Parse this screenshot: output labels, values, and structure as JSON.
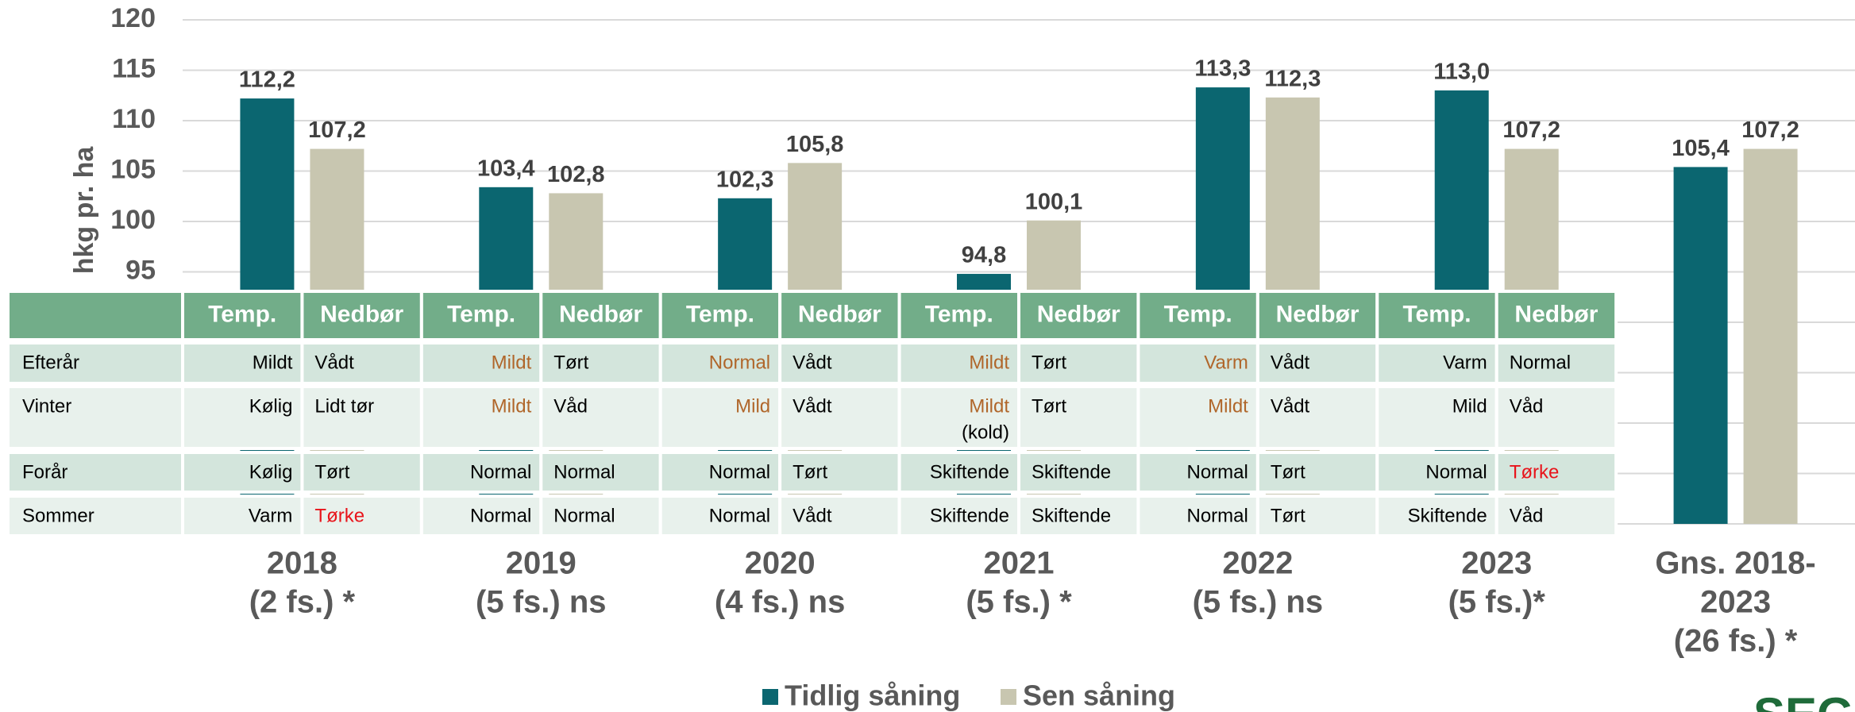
{
  "chart_data": {
    "type": "bar",
    "y_axis_label": "hkg pr. ha",
    "categories": [
      [
        "2018",
        "(2 fs.) *"
      ],
      [
        "2019",
        "(5 fs.) ns"
      ],
      [
        "2020",
        "(4 fs.) ns"
      ],
      [
        "2021",
        "(5 fs.) *"
      ],
      [
        "2022",
        "(5 fs.) ns"
      ],
      [
        "2023",
        "(5 fs.)*"
      ],
      [
        "Gns. 2018-",
        "2023",
        "(26 fs.) *"
      ]
    ],
    "series": [
      {
        "name": "Tidlig såning",
        "color": "#0b6670",
        "values": [
          112.2,
          103.4,
          102.3,
          94.8,
          113.3,
          113.0,
          105.4
        ],
        "value_labels": [
          "112,2",
          "103,4",
          "102,3",
          "94,8",
          "113,3",
          "113,0",
          "105,4"
        ]
      },
      {
        "name": "Sen såning",
        "color": "#c8c6b0",
        "values": [
          107.2,
          102.8,
          105.8,
          100.1,
          112.3,
          107.2,
          107.2
        ],
        "value_labels": [
          "107,2",
          "102,8",
          "105,8",
          "100,1",
          "112,3",
          "107,2",
          "107,2"
        ]
      }
    ],
    "ylim": [
      70,
      120
    ],
    "yticks": [
      70,
      75,
      80,
      85,
      90,
      95,
      100,
      105,
      110,
      115,
      120
    ],
    "grid": true,
    "legend": "bottom"
  },
  "table": {
    "header": [
      "Temp.",
      "Nedbør",
      "Temp.",
      "Nedbør",
      "Temp.",
      "Nedbør",
      "Temp.",
      "Nedbør",
      "Temp.",
      "Nedbør",
      "Temp.",
      "Nedbør"
    ],
    "header_color": "#72ad89",
    "row_colors": [
      "#d3e5dc",
      "#e8f1ec"
    ],
    "text_color": "#000000",
    "rows": [
      {
        "label": "Efterår",
        "cells": [
          {
            "text": "Mildt"
          },
          {
            "text": "Vådt"
          },
          {
            "text": "Mildt",
            "color": "#b0662a"
          },
          {
            "text": "Tørt"
          },
          {
            "text": "Normal",
            "color": "#b0662a"
          },
          {
            "text": "Vådt"
          },
          {
            "text": "Mildt",
            "color": "#b0662a"
          },
          {
            "text": "Tørt"
          },
          {
            "text": "Varm",
            "color": "#b0662a"
          },
          {
            "text": "Vådt"
          },
          {
            "text": "Varm"
          },
          {
            "text": "Normal"
          }
        ]
      },
      {
        "label": "Vinter",
        "cells": [
          {
            "text": "Kølig"
          },
          {
            "text": "Lidt tør"
          },
          {
            "text": "Mildt",
            "color": "#b0662a"
          },
          {
            "text": "Våd"
          },
          {
            "text": "Mild",
            "color": "#b0662a"
          },
          {
            "text": "Vådt"
          },
          {
            "text": "Mildt",
            "color": "#b0662a",
            "note": "(kold)"
          },
          {
            "text": "Tørt"
          },
          {
            "text": "Mildt",
            "color": "#b0662a"
          },
          {
            "text": "Vådt"
          },
          {
            "text": "Mild"
          },
          {
            "text": "Våd"
          }
        ]
      },
      {
        "label": "Forår",
        "cells": [
          {
            "text": "Kølig"
          },
          {
            "text": "Tørt"
          },
          {
            "text": "Normal"
          },
          {
            "text": "Normal"
          },
          {
            "text": "Normal"
          },
          {
            "text": "Tørt"
          },
          {
            "text": "Skiftende"
          },
          {
            "text": "Skiftende"
          },
          {
            "text": "Normal"
          },
          {
            "text": "Tørt"
          },
          {
            "text": "Normal"
          },
          {
            "text": "Tørke",
            "color": "#e8141b"
          }
        ]
      },
      {
        "label": "Sommer",
        "cells": [
          {
            "text": "Varm"
          },
          {
            "text": "Tørke",
            "color": "#e8141b"
          },
          {
            "text": "Normal"
          },
          {
            "text": "Normal"
          },
          {
            "text": "Normal"
          },
          {
            "text": "Vådt"
          },
          {
            "text": "Skiftende"
          },
          {
            "text": "Skiftende"
          },
          {
            "text": "Normal"
          },
          {
            "text": "Tørt"
          },
          {
            "text": "Skiftende"
          },
          {
            "text": "Våd"
          }
        ]
      }
    ]
  },
  "logo": "SEG"
}
